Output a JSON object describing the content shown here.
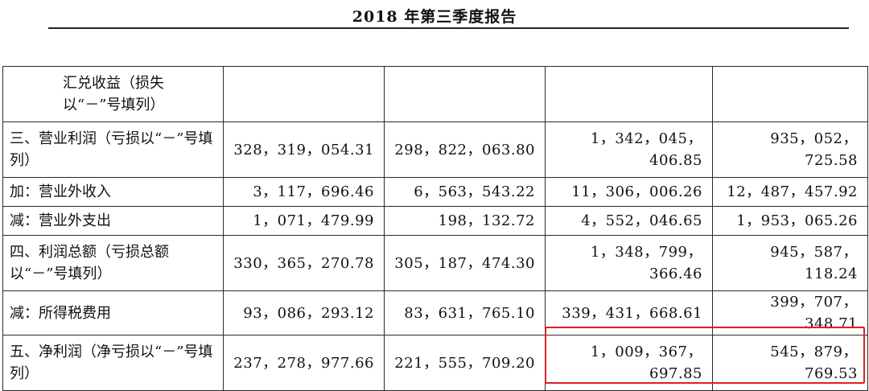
{
  "report": {
    "title": "2018 年第三季度报告"
  },
  "table": {
    "rows": [
      {
        "label": "汇兑收益（损失以“－”号填列）",
        "indent": true,
        "values": [
          "",
          "",
          "",
          ""
        ]
      },
      {
        "label": "三、营业利润（亏损以“－”号填列）",
        "indent": false,
        "values": [
          "328，319，054.31",
          "298，822，063.80",
          "1，342，045，406.85",
          "935，052，725.58"
        ]
      },
      {
        "label": "加：营业外收入",
        "indent": false,
        "values": [
          "3，117，696.46",
          "6，563，543.22",
          "11，306，006.26",
          "12，487，457.92"
        ]
      },
      {
        "label": "减：营业外支出",
        "indent": false,
        "values": [
          "1，071，479.99",
          "198，132.72",
          "4，552，046.65",
          "1，953，065.26"
        ]
      },
      {
        "label": "四、利润总额（亏损总额以“－”号填列）",
        "indent": false,
        "values": [
          "330，365，270.78",
          "305，187，474.30",
          "1，348，799，366.46",
          "945，587，118.24"
        ]
      },
      {
        "label": "减：所得税费用",
        "indent": false,
        "values": [
          "93，086，293.12",
          "83，631，765.10",
          "339，431，668.61",
          "399，707，348.71"
        ]
      },
      {
        "label": "五、净利润（净亏损以“－”号填列）",
        "indent": false,
        "values": [
          "237，278，977.66",
          "221，555，709.20",
          "1，009，367，697.85",
          "545，879，769.53"
        ]
      }
    ]
  },
  "annotation": {
    "highlight_color": "#e02020"
  }
}
